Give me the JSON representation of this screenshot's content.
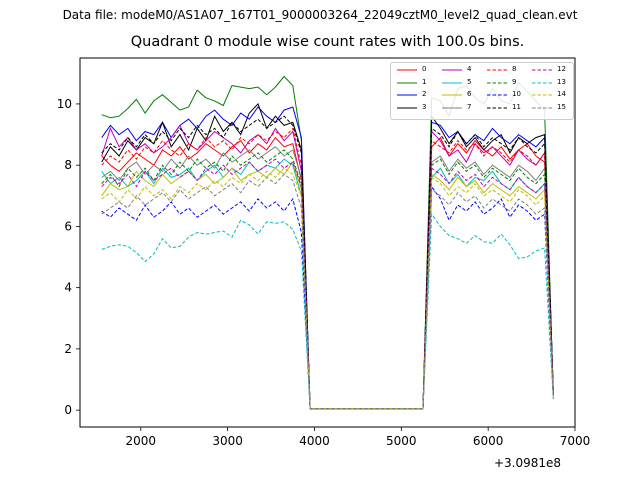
{
  "figure": {
    "suptitle": "Data file: modeM0/AS1A07_167T01_9000003264_22049cztM0_level2_quad_clean.evt"
  },
  "chart_data": {
    "type": "line",
    "title": "Quadrant 0 module wise count rates with 100.0s bins.",
    "xlabel": "",
    "ylabel": "",
    "x_offset_label": "+3.0981e8",
    "xlim": [
      1300,
      7000
    ],
    "ylim": [
      -0.55,
      11.5
    ],
    "xticks": [
      2000,
      3000,
      4000,
      5000,
      6000,
      7000
    ],
    "yticks": [
      0,
      2,
      4,
      6,
      8,
      10
    ],
    "grid": false,
    "legend_position": "top-right",
    "x": [
      1550,
      1650,
      1750,
      1850,
      1950,
      2050,
      2150,
      2250,
      2350,
      2450,
      2550,
      2650,
      2750,
      2850,
      2950,
      3050,
      3150,
      3250,
      3350,
      3450,
      3550,
      3650,
      3750,
      3850,
      3950,
      5250,
      5350,
      5450,
      5550,
      5650,
      5750,
      5850,
      5950,
      6050,
      6150,
      6250,
      6350,
      6450,
      6550,
      6650,
      6750
    ],
    "series": [
      {
        "name": "0",
        "color": "#ff0000",
        "dash": "solid",
        "values": [
          8.3,
          8.0,
          7.8,
          8.1,
          8.4,
          8.2,
          8.0,
          8.5,
          8.3,
          8.6,
          8.2,
          8.4,
          8.7,
          8.5,
          8.3,
          8.6,
          8.8,
          8.4,
          8.7,
          8.5,
          8.9,
          8.6,
          8.7,
          7.5,
          0.05,
          0.05,
          8.6,
          8.9,
          8.3,
          8.7,
          8.4,
          8.8,
          8.5,
          8.3,
          8.6,
          8.2,
          8.5,
          8.7,
          8.3,
          8.1,
          0.5
        ]
      },
      {
        "name": "1",
        "color": "#008000",
        "dash": "solid",
        "values": [
          9.65,
          9.55,
          9.6,
          9.85,
          10.15,
          9.7,
          10.1,
          10.3,
          10.05,
          9.8,
          9.9,
          10.45,
          10.2,
          10.1,
          9.95,
          10.6,
          10.55,
          10.5,
          10.55,
          10.3,
          10.55,
          10.9,
          10.6,
          8.8,
          0.05,
          0.05,
          10.2,
          10.1,
          9.6,
          10.5,
          10.6,
          10.2,
          10.0,
          10.5,
          10.1,
          10.0,
          10.7,
          10.4,
          10.1,
          9.8,
          0.45
        ]
      },
      {
        "name": "2",
        "color": "#0000ff",
        "dash": "solid",
        "values": [
          8.9,
          9.3,
          9.0,
          9.2,
          8.8,
          9.1,
          9.0,
          9.4,
          8.9,
          9.3,
          9.5,
          9.2,
          9.6,
          9.8,
          9.5,
          9.3,
          9.7,
          9.5,
          9.9,
          9.6,
          9.4,
          9.8,
          9.9,
          8.9,
          0.05,
          0.05,
          9.4,
          9.3,
          8.9,
          9.1,
          8.7,
          9.0,
          8.8,
          9.2,
          8.9,
          8.7,
          9.0,
          8.8,
          8.6,
          8.9,
          0.6
        ]
      },
      {
        "name": "3",
        "color": "#000000",
        "dash": "solid",
        "values": [
          8.1,
          8.6,
          8.3,
          8.8,
          8.5,
          8.9,
          8.7,
          9.4,
          8.6,
          9.0,
          8.5,
          9.2,
          8.8,
          9.6,
          9.1,
          9.4,
          9.0,
          9.7,
          10.0,
          9.2,
          9.6,
          9.3,
          9.4,
          8.5,
          0.05,
          0.05,
          9.6,
          9.2,
          8.7,
          9.1,
          8.6,
          8.9,
          8.5,
          8.8,
          9.0,
          8.4,
          8.9,
          8.7,
          8.9,
          9.0,
          0.6
        ]
      },
      {
        "name": "4",
        "color": "#bf00bf",
        "dash": "solid",
        "values": [
          8.3,
          9.2,
          8.6,
          8.9,
          8.5,
          8.7,
          8.4,
          8.6,
          8.9,
          9.3,
          8.7,
          8.5,
          8.8,
          9.1,
          8.9,
          8.7,
          8.4,
          8.8,
          9.0,
          8.7,
          9.2,
          8.8,
          9.1,
          7.8,
          0.05,
          0.05,
          9.1,
          8.8,
          8.3,
          8.5,
          8.1,
          8.7,
          8.4,
          8.6,
          8.3,
          8.0,
          8.5,
          8.2,
          8.0,
          8.4,
          0.5
        ]
      },
      {
        "name": "5",
        "color": "#00bfbf",
        "dash": "solid",
        "values": [
          7.8,
          7.4,
          7.6,
          7.3,
          7.5,
          7.8,
          7.4,
          7.9,
          7.6,
          7.7,
          7.9,
          7.5,
          7.8,
          8.0,
          7.6,
          7.9,
          7.7,
          8.1,
          7.8,
          8.0,
          7.9,
          8.2,
          8.0,
          7.0,
          0.05,
          0.05,
          7.6,
          7.9,
          7.4,
          7.7,
          7.3,
          7.6,
          7.5,
          7.8,
          7.4,
          7.2,
          7.6,
          7.3,
          7.1,
          7.4,
          0.45
        ]
      },
      {
        "name": "6",
        "color": "#bfbf00",
        "dash": "solid",
        "values": [
          7.0,
          7.4,
          7.2,
          7.3,
          7.8,
          7.5,
          7.3,
          7.7,
          7.4,
          7.6,
          7.8,
          7.5,
          7.7,
          7.4,
          7.6,
          7.9,
          7.5,
          7.7,
          7.8,
          7.6,
          7.9,
          7.7,
          8.1,
          7.2,
          0.05,
          0.05,
          7.7,
          7.5,
          7.2,
          7.6,
          7.3,
          7.5,
          7.1,
          7.4,
          7.2,
          7.0,
          7.3,
          7.1,
          6.9,
          7.2,
          0.45
        ]
      },
      {
        "name": "7",
        "color": "#808080",
        "dash": "solid",
        "values": [
          7.6,
          7.8,
          7.5,
          7.9,
          8.1,
          7.7,
          8.0,
          7.8,
          8.2,
          7.9,
          8.3,
          8.0,
          8.2,
          7.9,
          8.4,
          8.1,
          8.3,
          8.5,
          8.2,
          8.4,
          8.6,
          8.3,
          8.5,
          7.6,
          0.05,
          0.05,
          8.1,
          8.3,
          7.8,
          8.2,
          7.9,
          8.1,
          7.7,
          8.0,
          7.8,
          7.6,
          8.0,
          7.8,
          7.5,
          7.9,
          0.5
        ]
      },
      {
        "name": "8",
        "color": "#ff0000",
        "dash": "dashed",
        "values": [
          8.0,
          8.3,
          8.1,
          8.5,
          8.2,
          8.6,
          8.4,
          8.8,
          8.5,
          8.3,
          8.7,
          8.5,
          8.9,
          8.6,
          8.8,
          8.5,
          8.9,
          8.7,
          9.0,
          8.8,
          9.1,
          8.9,
          9.2,
          8.0,
          0.05,
          0.05,
          8.8,
          8.6,
          8.4,
          8.8,
          8.5,
          8.7,
          8.3,
          8.6,
          8.4,
          8.1,
          8.5,
          8.3,
          8.0,
          8.4,
          0.5
        ]
      },
      {
        "name": "9",
        "color": "#008000",
        "dash": "dashed",
        "values": [
          7.4,
          7.7,
          7.3,
          7.9,
          7.6,
          7.9,
          7.5,
          8.0,
          7.7,
          8.1,
          7.8,
          8.2,
          7.9,
          8.1,
          7.8,
          8.3,
          8.0,
          8.2,
          8.4,
          8.1,
          8.3,
          8.5,
          8.2,
          7.4,
          0.05,
          0.05,
          8.0,
          8.2,
          7.7,
          8.1,
          7.8,
          8.0,
          7.6,
          7.9,
          7.7,
          7.5,
          7.9,
          7.6,
          7.4,
          7.7,
          0.45
        ]
      },
      {
        "name": "10",
        "color": "#0000ff",
        "dash": "dashed",
        "values": [
          6.5,
          6.3,
          6.6,
          6.4,
          6.2,
          6.7,
          6.3,
          6.5,
          6.8,
          6.4,
          6.6,
          6.3,
          6.5,
          6.7,
          6.4,
          6.6,
          6.8,
          6.5,
          6.9,
          6.6,
          6.8,
          6.5,
          6.9,
          5.8,
          0.05,
          0.05,
          7.3,
          6.9,
          6.2,
          6.7,
          6.5,
          6.8,
          6.4,
          6.6,
          6.9,
          6.3,
          6.7,
          6.5,
          6.2,
          6.4,
          0.4
        ]
      },
      {
        "name": "11",
        "color": "#000000",
        "dash": "dashed",
        "values": [
          8.4,
          8.7,
          8.5,
          8.9,
          8.6,
          9.0,
          8.7,
          9.1,
          8.8,
          9.2,
          8.9,
          9.3,
          9.0,
          9.2,
          8.9,
          9.4,
          9.1,
          9.3,
          9.5,
          9.2,
          9.4,
          9.6,
          9.3,
          8.4,
          0.05,
          0.05,
          9.2,
          9.0,
          8.6,
          9.1,
          8.7,
          9.0,
          8.6,
          8.9,
          8.7,
          8.5,
          8.9,
          8.6,
          8.4,
          8.7,
          0.55
        ]
      },
      {
        "name": "12",
        "color": "#bf00bf",
        "dash": "dashed",
        "values": [
          7.3,
          7.6,
          7.4,
          7.7,
          7.3,
          7.8,
          7.5,
          7.7,
          7.9,
          7.6,
          7.8,
          7.5,
          7.9,
          7.7,
          8.0,
          7.7,
          7.9,
          8.1,
          7.8,
          8.0,
          8.2,
          7.9,
          8.1,
          7.3,
          0.05,
          0.05,
          7.9,
          7.7,
          7.4,
          7.8,
          7.5,
          7.7,
          7.3,
          7.6,
          7.4,
          7.2,
          7.6,
          7.3,
          7.1,
          7.4,
          0.45
        ]
      },
      {
        "name": "13",
        "color": "#00bfbf",
        "dash": "dashed",
        "values": [
          5.25,
          5.35,
          5.4,
          5.35,
          5.15,
          4.85,
          5.1,
          5.6,
          5.3,
          5.35,
          5.65,
          5.8,
          5.75,
          5.8,
          5.85,
          5.65,
          6.2,
          6.05,
          5.75,
          6.15,
          6.1,
          6.15,
          5.9,
          5.2,
          0.05,
          0.05,
          6.4,
          6.0,
          5.7,
          5.6,
          5.45,
          5.7,
          5.5,
          5.45,
          5.75,
          5.4,
          4.95,
          5.0,
          5.2,
          5.3,
          0.35
        ]
      },
      {
        "name": "14",
        "color": "#bfbf00",
        "dash": "dashed",
        "values": [
          6.9,
          7.1,
          6.8,
          7.2,
          6.9,
          7.3,
          7.0,
          7.2,
          6.9,
          7.3,
          7.1,
          7.4,
          7.2,
          7.5,
          7.3,
          7.6,
          7.4,
          7.7,
          7.5,
          7.8,
          7.6,
          7.9,
          7.7,
          7.0,
          0.05,
          0.05,
          7.6,
          7.4,
          7.0,
          7.3,
          7.1,
          7.4,
          7.0,
          7.2,
          7.0,
          6.8,
          7.2,
          7.0,
          6.7,
          7.0,
          0.45
        ]
      },
      {
        "name": "15",
        "color": "#808080",
        "dash": "dashed",
        "values": [
          6.4,
          6.6,
          6.8,
          6.6,
          7.0,
          6.7,
          6.9,
          7.1,
          6.8,
          7.2,
          6.9,
          7.1,
          7.3,
          7.0,
          7.2,
          7.4,
          7.1,
          7.5,
          7.3,
          7.6,
          7.4,
          7.7,
          7.5,
          6.6,
          0.05,
          0.05,
          7.2,
          7.0,
          6.7,
          7.1,
          6.8,
          7.0,
          6.6,
          6.9,
          6.7,
          6.5,
          6.9,
          6.7,
          6.4,
          6.6,
          0.4
        ]
      }
    ]
  }
}
